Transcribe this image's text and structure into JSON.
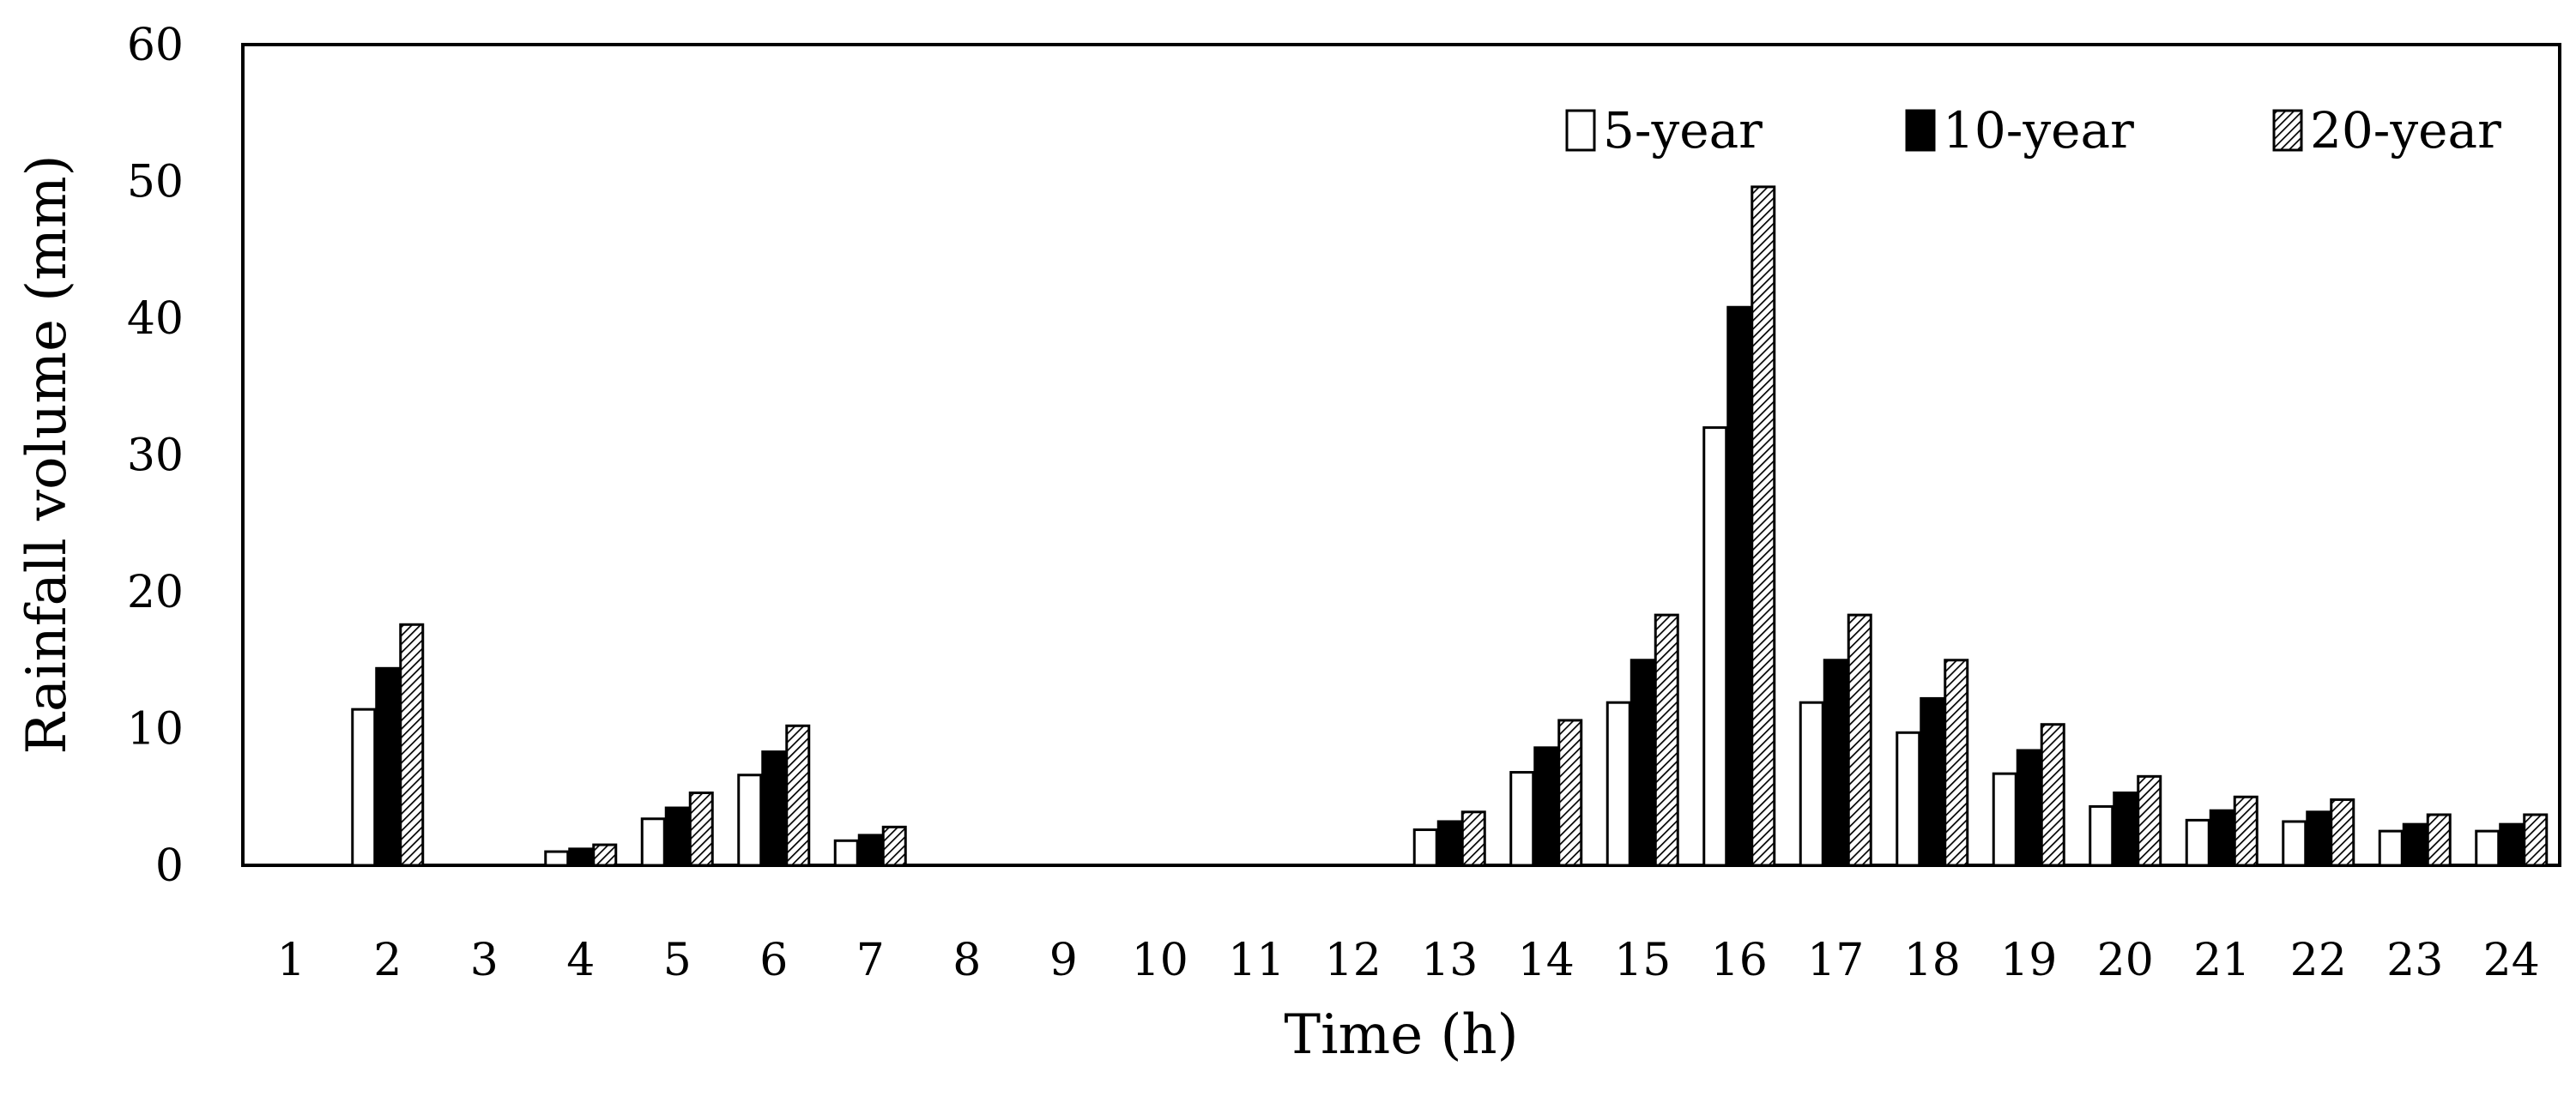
{
  "chart_data": {
    "type": "bar",
    "title": "",
    "xlabel": "Time (h)",
    "ylabel": "Rainfall volume (mm)",
    "ylim": [
      0,
      60
    ],
    "yticks": [
      0,
      10,
      20,
      30,
      40,
      50,
      60
    ],
    "categories": [
      "1",
      "2",
      "3",
      "4",
      "5",
      "6",
      "7",
      "8",
      "9",
      "10",
      "11",
      "12",
      "13",
      "14",
      "15",
      "16",
      "17",
      "18",
      "19",
      "20",
      "21",
      "22",
      "23",
      "24"
    ],
    "grid": false,
    "legend_position": "top-right",
    "series": [
      {
        "name": "5-year",
        "style": "white",
        "values": [
          0,
          11.4,
          0,
          1.0,
          3.4,
          6.6,
          1.8,
          0,
          0,
          0,
          0,
          0,
          2.6,
          6.8,
          11.9,
          32.0,
          11.9,
          9.7,
          6.7,
          4.3,
          3.3,
          3.2,
          2.5,
          2.5
        ]
      },
      {
        "name": "10-year",
        "style": "black",
        "values": [
          0,
          14.4,
          0,
          1.2,
          4.2,
          8.3,
          2.2,
          0,
          0,
          0,
          0,
          0,
          3.2,
          8.6,
          15.0,
          40.8,
          15.0,
          12.2,
          8.4,
          5.3,
          4.0,
          3.9,
          3.0,
          3.0
        ]
      },
      {
        "name": "20-year",
        "style": "hatched",
        "values": [
          0,
          17.6,
          0,
          1.5,
          5.3,
          10.2,
          2.8,
          0,
          0,
          0,
          0,
          0,
          3.9,
          10.6,
          18.3,
          49.6,
          18.3,
          15.0,
          10.3,
          6.5,
          5.0,
          4.8,
          3.7,
          3.7
        ]
      }
    ]
  }
}
